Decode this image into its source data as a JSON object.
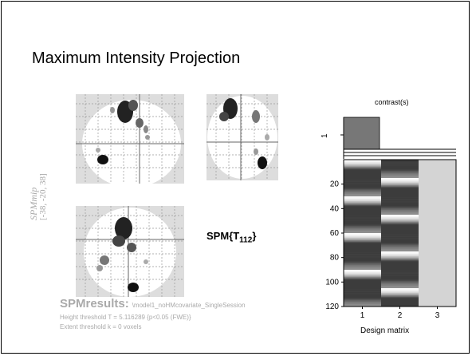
{
  "slide": {
    "title": "Maximum Intensity Projection"
  },
  "mip": {
    "side_label_1": "SPMmip",
    "side_label_2": "[-38, -20, 38]",
    "stat_title_main": "SPM{T",
    "stat_title_sub": "112",
    "stat_title_end": "}"
  },
  "results": {
    "heading": "SPMresults:",
    "file": "\\model1_noHMcovariate_SingleSession",
    "height_threshold": "Height threshold T = 5.116289  {p<0.05 (FWE)}",
    "extent_threshold": "Extent threshold k = 0 voxels"
  },
  "chart_data": [
    {
      "type": "bar",
      "title": "contrast(s)",
      "y_tick_labels": [
        "1"
      ],
      "categories": [
        "1",
        "2",
        "3"
      ],
      "values": [
        1,
        0,
        0
      ]
    },
    {
      "type": "heatmap",
      "xlabel": "Design matrix",
      "x_ticks": [
        "1",
        "2",
        "3"
      ],
      "y_ticks": [
        "20",
        "40",
        "60",
        "80",
        "100",
        "120"
      ],
      "ylim": [
        0,
        120
      ],
      "columns": 3,
      "rows": 120
    }
  ],
  "colors": {
    "mip_background": "#dddddd",
    "blob_dark": "#1a1a1a",
    "label_gray": "#aaaaaa",
    "bar_fill": "#777777",
    "column3": "#d4d4d4"
  }
}
